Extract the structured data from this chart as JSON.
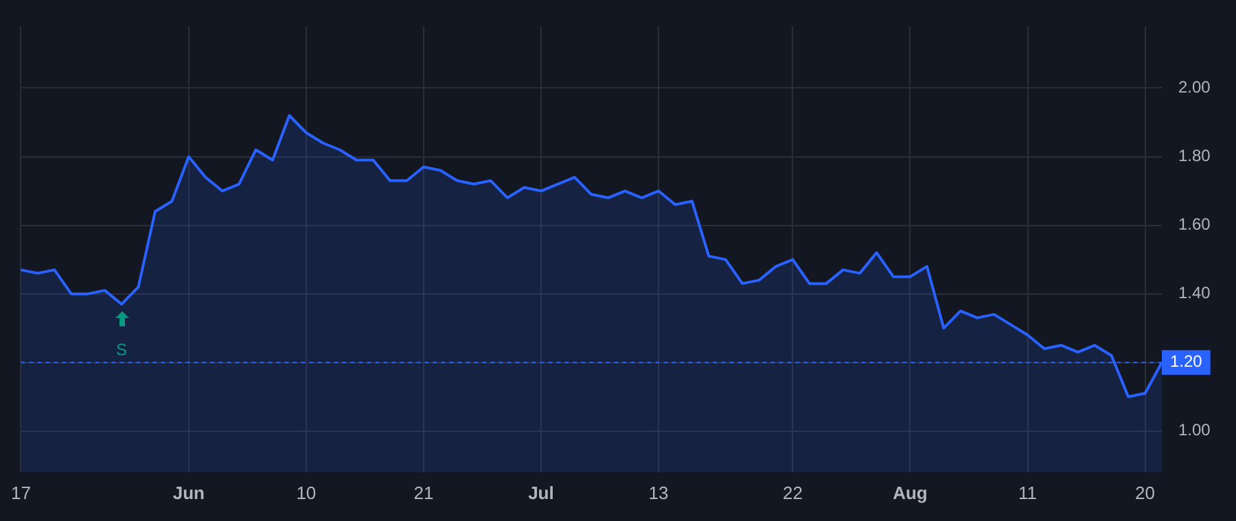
{
  "chart_data": {
    "type": "area",
    "categories": [
      "17",
      null,
      null,
      null,
      null,
      null,
      null,
      null,
      null,
      null,
      "Jun",
      null,
      null,
      null,
      null,
      null,
      null,
      "10",
      null,
      null,
      null,
      null,
      null,
      null,
      "21",
      null,
      null,
      null,
      null,
      null,
      null,
      "Jul",
      null,
      null,
      null,
      null,
      null,
      null,
      "13",
      null,
      null,
      null,
      null,
      null,
      null,
      null,
      "22",
      null,
      null,
      null,
      null,
      null,
      null,
      "Aug",
      null,
      null,
      null,
      null,
      null,
      null,
      "11",
      null,
      null,
      null,
      null,
      null,
      null,
      "20",
      null
    ],
    "series": [
      {
        "color": "#2962ff",
        "values": [
          1.47,
          1.46,
          1.47,
          1.4,
          1.4,
          1.41,
          1.37,
          1.42,
          1.64,
          1.67,
          1.8,
          1.74,
          1.7,
          1.72,
          1.82,
          1.79,
          1.92,
          1.87,
          1.84,
          1.82,
          1.79,
          1.79,
          1.73,
          1.73,
          1.77,
          1.76,
          1.73,
          1.72,
          1.73,
          1.68,
          1.71,
          1.7,
          1.72,
          1.74,
          1.69,
          1.68,
          1.7,
          1.68,
          1.7,
          1.66,
          1.67,
          1.51,
          1.5,
          1.43,
          1.44,
          1.48,
          1.5,
          1.43,
          1.43,
          1.47,
          1.46,
          1.52,
          1.45,
          1.45,
          1.48,
          1.3,
          1.35,
          1.33,
          1.34,
          1.31,
          1.28,
          1.24,
          1.25,
          1.23,
          1.25,
          1.22,
          1.1,
          1.11,
          1.2
        ]
      }
    ],
    "ylim": [
      0.88,
      2.18
    ],
    "yticks": [
      {
        "value": 1,
        "label": "1.00"
      },
      {
        "value": 1.2,
        "label": null
      },
      {
        "value": 1.4,
        "label": "1.40"
      },
      {
        "value": 1.6,
        "label": "1.60"
      },
      {
        "value": 1.8,
        "label": "1.80"
      },
      {
        "value": 2,
        "label": "2.00"
      }
    ],
    "grid": true,
    "ref_lines": [
      {
        "axis": "y",
        "value": 1.2,
        "label": "1.20",
        "color": "#2962ff",
        "line_style": "dashed"
      }
    ],
    "annotations": [
      {
        "text": "S",
        "y": 1.37
      }
    ]
  }
}
